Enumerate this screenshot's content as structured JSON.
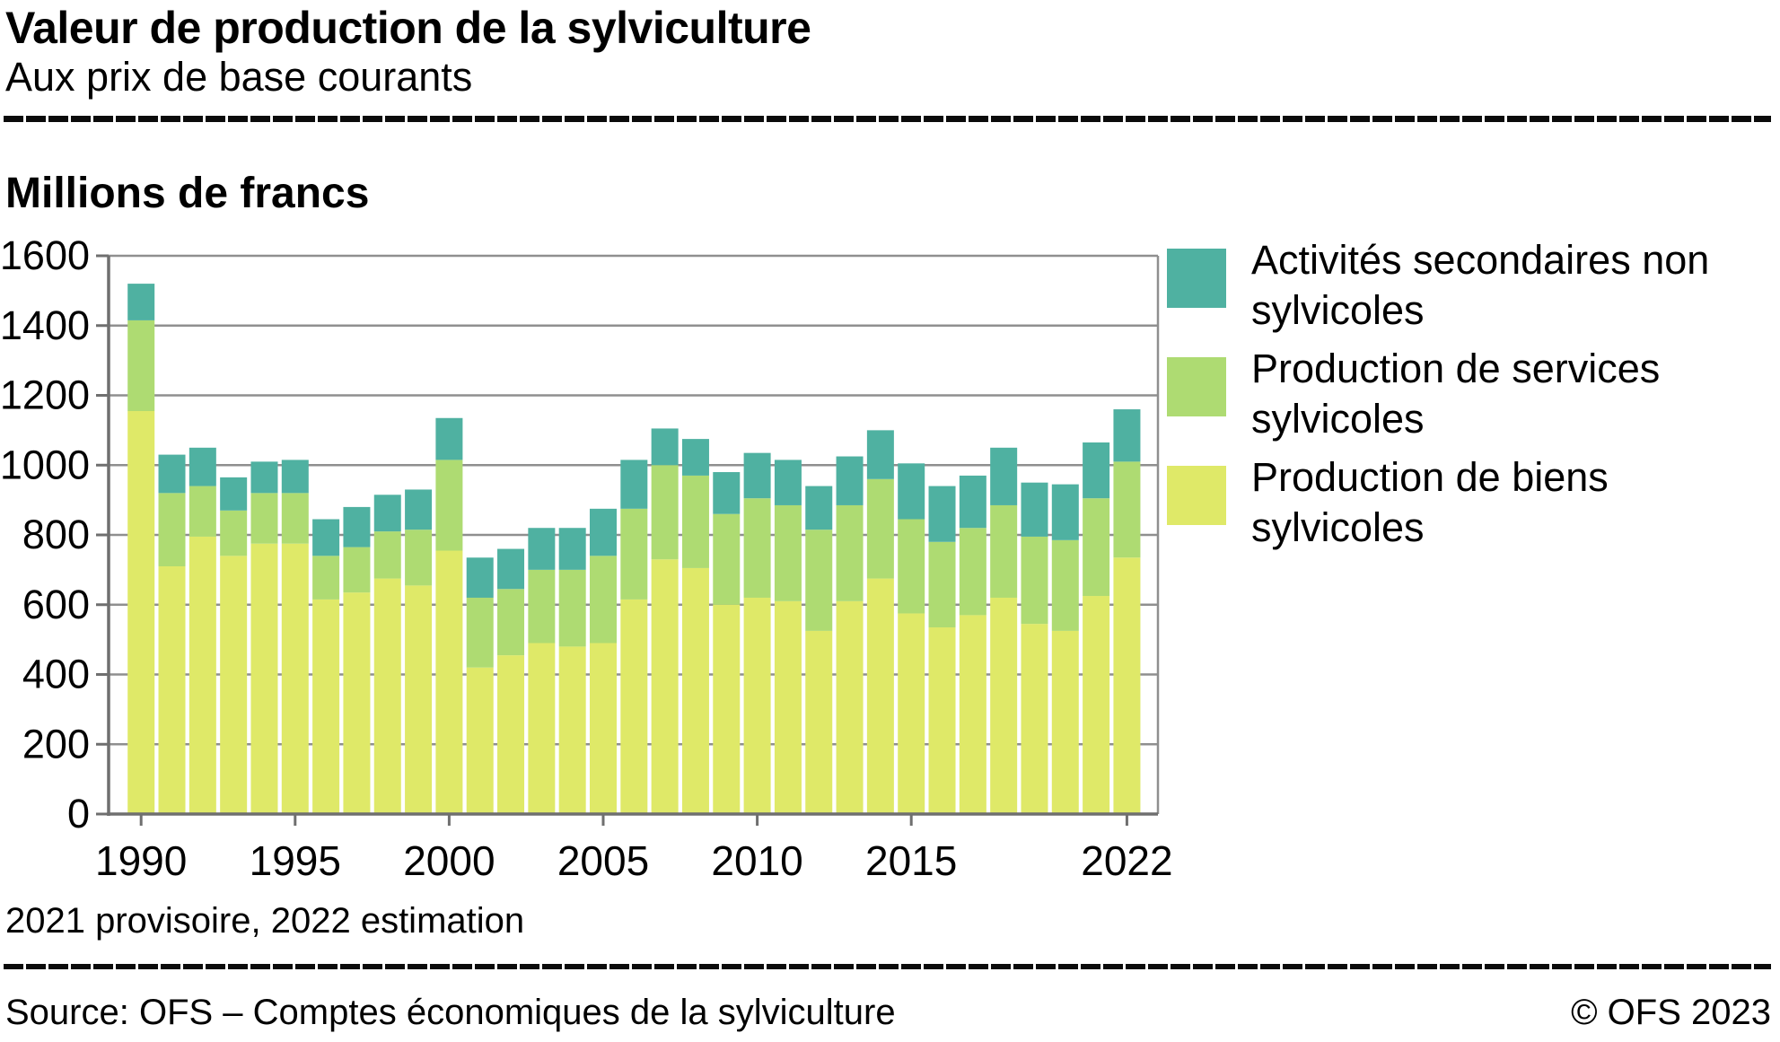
{
  "header": {
    "title": "Valeur de production de la sylviculture",
    "subtitle": "Aux prix de base courants"
  },
  "unit_label": "Millions de francs",
  "footnote": "2021 provisoire, 2022 estimation",
  "footer": {
    "source": "Source: OFS – Comptes économiques de la sylviculture",
    "copyright": "© OFS 2023"
  },
  "colors": {
    "gridline": "#8f8f8f",
    "axis": "#6f6f6f",
    "text": "#000000",
    "background": "#ffffff"
  },
  "chart_data": {
    "type": "bar",
    "stacked": true,
    "title": "Valeur de production de la sylviculture",
    "subtitle": "Aux prix de base courants",
    "ylabel": "Millions de francs",
    "xlabel": "",
    "ylim": [
      0,
      1600
    ],
    "y_ticks": [
      0,
      200,
      400,
      600,
      800,
      1000,
      1200,
      1400,
      1600
    ],
    "x_tick_labels": [
      1990,
      1995,
      2000,
      2005,
      2010,
      2015,
      2022
    ],
    "grid": true,
    "legend_position": "right",
    "categories": [
      1990,
      1991,
      1992,
      1993,
      1994,
      1995,
      1996,
      1997,
      1998,
      1999,
      2000,
      2001,
      2002,
      2003,
      2004,
      2005,
      2006,
      2007,
      2008,
      2009,
      2010,
      2011,
      2012,
      2013,
      2014,
      2015,
      2016,
      2017,
      2018,
      2019,
      2020,
      2021,
      2022
    ],
    "series": [
      {
        "name": "Production de biens sylvicoles",
        "color": "#DFE968",
        "values": [
          1155,
          710,
          795,
          740,
          775,
          775,
          615,
          635,
          675,
          655,
          755,
          420,
          455,
          490,
          480,
          490,
          615,
          730,
          705,
          600,
          620,
          610,
          525,
          610,
          675,
          575,
          535,
          570,
          620,
          545,
          525,
          625,
          735
        ]
      },
      {
        "name": "Production de services sylvicoles",
        "color": "#AEDB72",
        "values": [
          260,
          210,
          145,
          130,
          145,
          145,
          125,
          130,
          135,
          160,
          260,
          200,
          190,
          210,
          220,
          250,
          260,
          270,
          265,
          260,
          285,
          275,
          290,
          275,
          285,
          270,
          245,
          250,
          265,
          250,
          260,
          280,
          275
        ]
      },
      {
        "name": "Activités secondaires non sylvicoles",
        "color": "#4FB1A1",
        "values": [
          105,
          110,
          110,
          95,
          90,
          95,
          105,
          115,
          105,
          115,
          120,
          115,
          115,
          120,
          120,
          135,
          140,
          105,
          105,
          120,
          130,
          130,
          125,
          140,
          140,
          160,
          160,
          150,
          165,
          155,
          160,
          160,
          150
        ]
      }
    ]
  }
}
